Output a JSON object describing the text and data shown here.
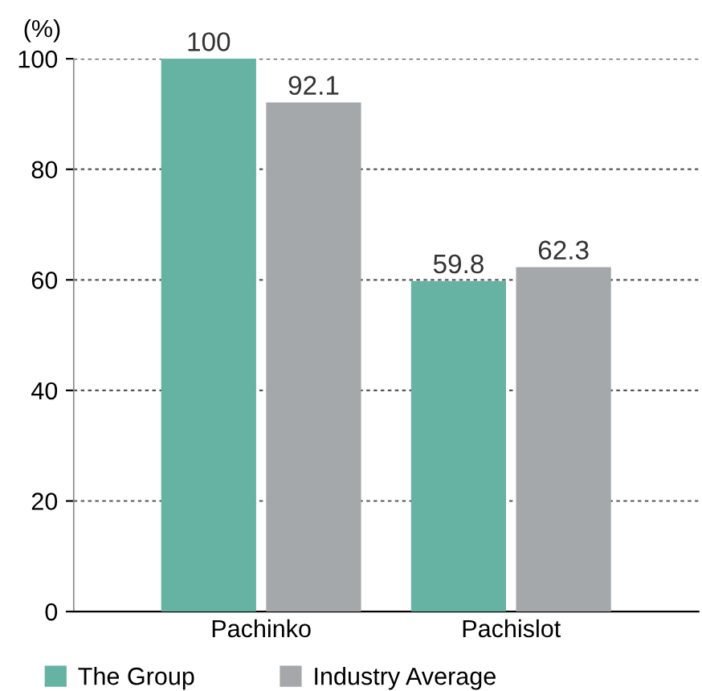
{
  "chart_data": {
    "type": "bar",
    "ylabel": "(%)",
    "categories": [
      "Pachinko",
      "Pachislot"
    ],
    "series": [
      {
        "name": "The Group",
        "color": "#66b3a3",
        "values": [
          100,
          59.8
        ]
      },
      {
        "name": "Industry Average",
        "color": "#a5a8ab",
        "values": [
          92.1,
          62.3
        ]
      }
    ],
    "ylim": [
      0,
      100
    ],
    "yticks": [
      0,
      20,
      40,
      60,
      80,
      100
    ],
    "grid": "y",
    "legend": "bottom",
    "data_labels": true
  }
}
